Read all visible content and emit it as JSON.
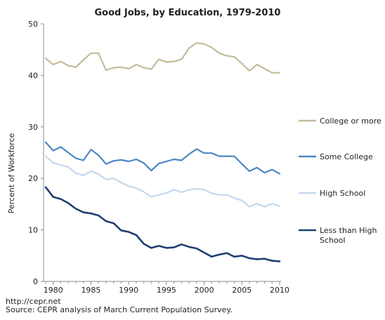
{
  "chart_data": {
    "type": "line",
    "title": "Good Jobs, by Education, 1979-2010",
    "ylabel": "Percent of Workforce",
    "xlabel": "",
    "xlim": [
      1979,
      2010
    ],
    "ylim": [
      0,
      50
    ],
    "x_ticks": [
      1980,
      1985,
      1990,
      1995,
      2000,
      2005,
      2010
    ],
    "y_ticks": [
      0,
      10,
      20,
      30,
      40,
      50
    ],
    "grid": false,
    "legend_position": "right",
    "x": [
      1979,
      1980,
      1981,
      1982,
      1983,
      1984,
      1985,
      1986,
      1987,
      1988,
      1989,
      1990,
      1991,
      1992,
      1993,
      1994,
      1995,
      1996,
      1997,
      1998,
      1999,
      2000,
      2001,
      2002,
      2003,
      2004,
      2005,
      2006,
      2007,
      2008,
      2009,
      2010
    ],
    "series": [
      {
        "name": "College or more",
        "color": "#c3bc9c",
        "values": [
          43.3,
          42.1,
          42.7,
          41.9,
          41.6,
          43.0,
          44.3,
          44.3,
          41.0,
          41.5,
          41.6,
          41.3,
          42.1,
          41.5,
          41.2,
          43.1,
          42.6,
          42.7,
          43.1,
          45.3,
          46.3,
          46.1,
          45.4,
          44.3,
          43.8,
          43.6,
          42.3,
          40.9,
          42.1,
          41.3,
          40.5,
          40.5
        ]
      },
      {
        "name": "Some College",
        "color": "#4e86c2",
        "values": [
          27.0,
          25.4,
          26.1,
          25.0,
          23.9,
          23.5,
          25.6,
          24.5,
          22.8,
          23.4,
          23.6,
          23.3,
          23.7,
          23.0,
          21.5,
          22.9,
          23.3,
          23.7,
          23.5,
          24.7,
          25.7,
          24.9,
          24.9,
          24.3,
          24.3,
          24.3,
          22.8,
          21.4,
          22.1,
          21.1,
          21.7,
          20.9
        ]
      },
      {
        "name": "High School",
        "color": "#c4d8ee",
        "values": [
          24.3,
          23.0,
          22.6,
          22.2,
          21.0,
          20.6,
          21.4,
          20.8,
          19.8,
          20.0,
          19.2,
          18.5,
          18.1,
          17.4,
          16.4,
          16.8,
          17.2,
          17.8,
          17.3,
          17.8,
          18.0,
          17.8,
          17.1,
          16.8,
          16.8,
          16.2,
          15.7,
          14.5,
          15.1,
          14.5,
          15.1,
          14.6
        ]
      },
      {
        "name": "Less than High School",
        "color": "#1f3f73",
        "values": [
          18.3,
          16.4,
          16.0,
          15.2,
          14.1,
          13.4,
          13.2,
          12.8,
          11.7,
          11.3,
          9.9,
          9.6,
          9.0,
          7.3,
          6.5,
          6.9,
          6.5,
          6.6,
          7.2,
          6.7,
          6.4,
          5.6,
          4.8,
          5.2,
          5.5,
          4.8,
          5.0,
          4.5,
          4.3,
          4.4,
          4.0,
          3.9
        ]
      }
    ]
  },
  "footer": {
    "url": "http://cepr.net",
    "source": "Source: CEPR analysis of March Current Population Survey."
  }
}
